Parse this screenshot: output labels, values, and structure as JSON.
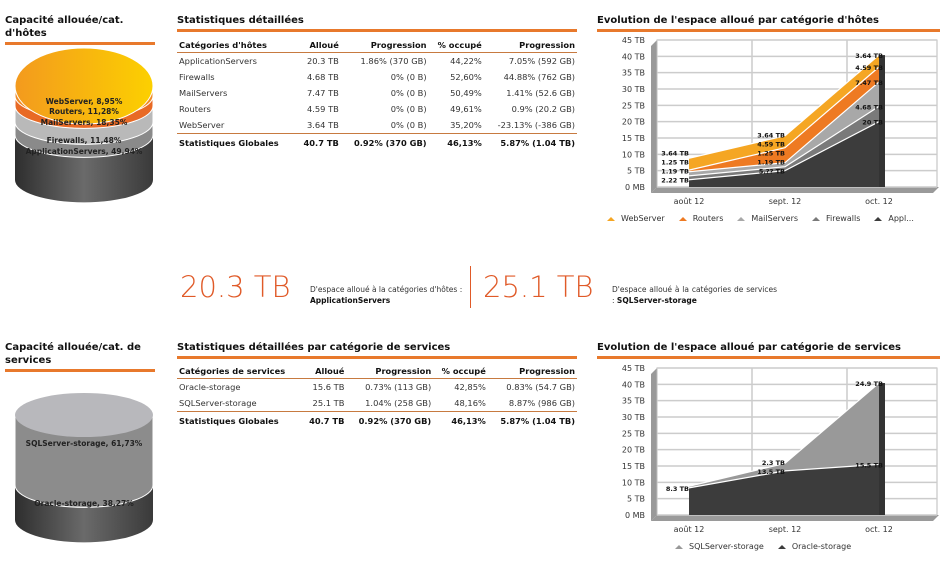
{
  "hosts": {
    "cyl_title": "Capacité allouée/cat. d'hôtes",
    "cyl_labels": [
      "WebServer, 8,95%",
      "Routers, 11,28%",
      "MailServers, 18,35%",
      "Firewalls, 11,48%",
      "ApplicationServers, 49,94%"
    ],
    "table_title": "Statistiques détaillées",
    "columns": [
      "Catégories d'hôtes",
      "Alloué",
      "Progression",
      "% occupé",
      "Progression"
    ],
    "rows": [
      [
        "ApplicationServers",
        "20.3 TB",
        "1.86% (370 GB)",
        "44,22%",
        "7.05% (592 GB)"
      ],
      [
        "Firewalls",
        "4.68 TB",
        "0% (0 B)",
        "52,60%",
        "44.88% (762 GB)"
      ],
      [
        "MailServers",
        "7.47 TB",
        "0% (0 B)",
        "50,49%",
        "1.41% (52.6 GB)"
      ],
      [
        "Routers",
        "4.59 TB",
        "0% (0 B)",
        "49,61%",
        "0.9% (20.2 GB)"
      ],
      [
        "WebServer",
        "3.64 TB",
        "0% (0 B)",
        "35,20%",
        "-23.13% (-386 GB)"
      ]
    ],
    "total": [
      "Statistiques Globales",
      "40.7 TB",
      "0.92% (370 GB)",
      "46,13%",
      "5.87% (1.04 TB)"
    ],
    "chart_title": "Evolution de l'espace alloué par catégorie d'hôtes"
  },
  "kpis": [
    {
      "value": "20.3 TB",
      "text": "D'espace alloué à la catégories d'hôtes :",
      "name": "ApplicationServers"
    },
    {
      "value": "25.1 TB",
      "text": "D'espace alloué à la catégories de services :",
      "name": "SQLServer-storage"
    }
  ],
  "services": {
    "cyl_title": "Capacité allouée/cat. de services",
    "cyl_labels": [
      "SQLServer-storage, 61,73%",
      "Oracle-storage, 38,27%"
    ],
    "table_title": "Statistiques détaillées par catégorie de services",
    "columns": [
      "Catégories de services",
      "Alloué",
      "Progression",
      "% occupé",
      "Progression"
    ],
    "rows": [
      [
        "Oracle-storage",
        "15.6 TB",
        "0.73% (113 GB)",
        "42,85%",
        "0.83% (54.7 GB)"
      ],
      [
        "SQLServer-storage",
        "25.1 TB",
        "1.04% (258 GB)",
        "48,16%",
        "8.87% (986 GB)"
      ]
    ],
    "total": [
      "Statistiques Globales",
      "40.7 TB",
      "0.92% (370 GB)",
      "46,13%",
      "5.87% (1.04 TB)"
    ],
    "chart_title": "Evolution de l'espace alloué par catégorie de services"
  },
  "chart_data": [
    {
      "type": "area",
      "stacked": true,
      "categories": [
        "août 12",
        "sept. 12",
        "oct. 12"
      ],
      "yticks": [
        "0 MB",
        "5 TB",
        "10 TB",
        "15 TB",
        "20 TB",
        "25 TB",
        "30 TB",
        "35 TB",
        "40 TB",
        "45 TB"
      ],
      "ylim": [
        0,
        45
      ],
      "grid": true,
      "legend": "bottom",
      "series": [
        {
          "name": "Appl...",
          "values": [
            2.22,
            5,
            20
          ],
          "labels": [
            "2.22 TB",
            "5.?? TB",
            "20 TB"
          ],
          "color": "#3c3c3c"
        },
        {
          "name": "Firewalls",
          "values": [
            1.19,
            1.19,
            4.68
          ],
          "labels": [
            "1.19 TB",
            "1.19 TB",
            "4.68 TB"
          ],
          "color": "#7a7a7a"
        },
        {
          "name": "MailServers",
          "values": [
            1.25,
            1.25,
            7.47
          ],
          "labels": [
            "1.25 TB",
            "1.25 TB",
            "7.47 TB"
          ],
          "color": "#a8a8a8"
        },
        {
          "name": "Routers",
          "values": [
            0.5,
            4.59,
            4.59
          ],
          "labels": [
            "",
            "4.59 TB",
            "4.59 TB"
          ],
          "color": "#ee7a22"
        },
        {
          "name": "WebServer",
          "values": [
            3.64,
            3.64,
            3.64
          ],
          "labels": [
            "3.64 TB",
            "3.64 TB",
            "3.64 TB"
          ],
          "color": "#f5a623"
        }
      ]
    },
    {
      "type": "area",
      "stacked": true,
      "categories": [
        "août 12",
        "sept. 12",
        "oct. 12"
      ],
      "yticks": [
        "0 MB",
        "5 TB",
        "10 TB",
        "15 TB",
        "20 TB",
        "25 TB",
        "30 TB",
        "35 TB",
        "40 TB",
        "45 TB"
      ],
      "ylim": [
        0,
        45
      ],
      "grid": true,
      "legend": "bottom",
      "series": [
        {
          "name": "Oracle-storage",
          "values": [
            8.3,
            13.5,
            15.5
          ],
          "labels": [
            "8.3 TB",
            "13.5 TB",
            "15.5 TB"
          ],
          "color": "#3c3c3c"
        },
        {
          "name": "SQLServer-storage",
          "values": [
            0.5,
            2.3,
            24.9
          ],
          "labels": [
            "",
            "2.3 TB",
            "24.9 TB"
          ],
          "color": "#999999"
        }
      ]
    }
  ]
}
